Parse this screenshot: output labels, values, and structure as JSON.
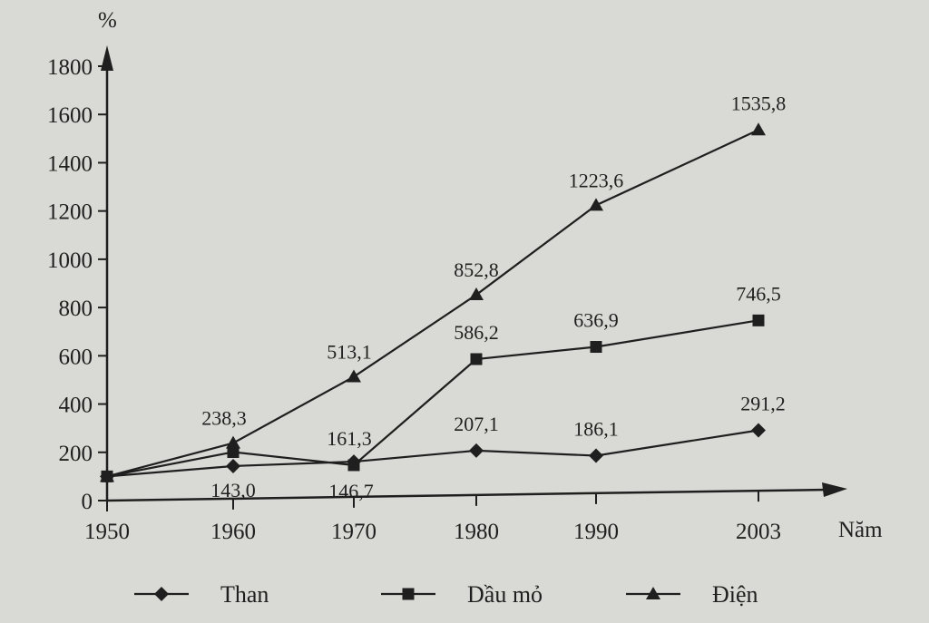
{
  "chart_data": {
    "type": "line",
    "title": "",
    "ylabel": "%",
    "xlabel": "Năm",
    "ylim": [
      0,
      1800
    ],
    "yticks": [
      0,
      200,
      400,
      600,
      800,
      1000,
      1200,
      1400,
      1600,
      1800
    ],
    "y_tick_labels": [
      "0",
      "200",
      "400",
      "600",
      "800",
      "1000",
      "1200",
      "1400",
      "1600",
      "1800"
    ],
    "x": [
      1950,
      1960,
      1970,
      1980,
      1990,
      2003
    ],
    "x_tick_labels": [
      "1950",
      "1960",
      "1970",
      "1980",
      "1990",
      "2003"
    ],
    "grid": false,
    "legend_position": "bottom",
    "series": [
      {
        "name": "Than",
        "marker": "diamond",
        "values": [
          100,
          143.0,
          161.3,
          207.1,
          186.1,
          291.2
        ],
        "labels": [
          "",
          "143,0",
          "161,3",
          "207,1",
          "186,1",
          "291,2"
        ]
      },
      {
        "name": "Dầu mỏ",
        "marker": "square",
        "values": [
          100,
          201.1,
          146.7,
          586.2,
          636.9,
          746.5
        ],
        "labels": [
          "",
          "",
          "146,7",
          "586,2",
          "636,9",
          "746,5"
        ]
      },
      {
        "name": "Điện",
        "marker": "triangle",
        "values": [
          100,
          238.3,
          513.1,
          852.8,
          1223.6,
          1535.8
        ],
        "labels": [
          "",
          "238,3",
          "513,1",
          "852,8",
          "1223,6",
          "1535,8"
        ]
      }
    ]
  }
}
